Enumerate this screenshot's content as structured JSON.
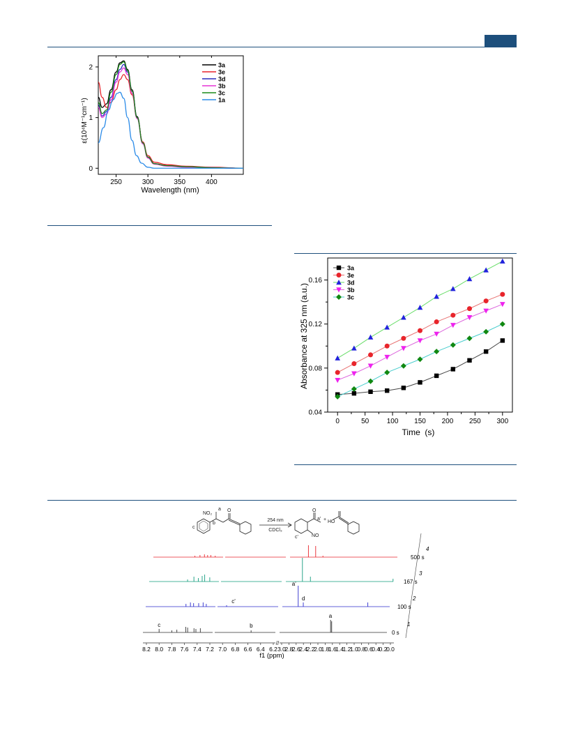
{
  "colors": {
    "rule": "#1d4f7c"
  },
  "figure_uv": {
    "chart_data": {
      "type": "line",
      "title": "",
      "xlabel": "Wavelength (nm)",
      "ylabel": "ε(10⁴M⁻¹cm⁻¹)",
      "xlim": [
        222,
        450
      ],
      "ylim": [
        -0.12,
        2.22
      ],
      "xticks": [
        "250",
        "300",
        "350",
        "400"
      ],
      "xtick_values": [
        250,
        300,
        350,
        400
      ],
      "yticks": [
        "0",
        "1",
        "2"
      ],
      "ytick_values": [
        0,
        1,
        2
      ],
      "legend_placement": "top-right",
      "series": [
        {
          "name": "3a",
          "color": "#000000",
          "x": [
            222,
            228,
            235,
            242,
            250,
            256,
            262,
            268,
            275,
            283,
            292,
            300,
            310,
            330,
            360,
            400,
            450
          ],
          "y": [
            1.4,
            1.2,
            1.27,
            1.55,
            1.9,
            2.08,
            2.12,
            1.95,
            1.55,
            1.02,
            0.5,
            0.22,
            0.09,
            0.05,
            0.03,
            0.01,
            0.0
          ]
        },
        {
          "name": "3e",
          "color": "#e8242b",
          "x": [
            222,
            228,
            235,
            242,
            250,
            256,
            262,
            268,
            275,
            283,
            292,
            300,
            310,
            330,
            360,
            400,
            450
          ],
          "y": [
            1.7,
            1.4,
            1.2,
            1.3,
            1.55,
            1.75,
            1.85,
            1.75,
            1.45,
            1.0,
            0.52,
            0.25,
            0.12,
            0.07,
            0.04,
            0.02,
            0.0
          ]
        },
        {
          "name": "3d",
          "color": "#2b2bbd",
          "x": [
            222,
            228,
            235,
            242,
            250,
            256,
            262,
            268,
            275,
            283,
            292,
            300,
            310,
            330,
            360,
            400,
            450
          ],
          "y": [
            1.25,
            1.03,
            1.12,
            1.4,
            1.75,
            1.95,
            2.05,
            1.9,
            1.52,
            1.0,
            0.5,
            0.22,
            0.09,
            0.05,
            0.03,
            0.01,
            0.0
          ]
        },
        {
          "name": "3b",
          "color": "#e632d6",
          "x": [
            222,
            228,
            235,
            242,
            250,
            256,
            262,
            268,
            275,
            283,
            292,
            300,
            310,
            330,
            360,
            400,
            450
          ],
          "y": [
            1.2,
            1.0,
            1.07,
            1.35,
            1.7,
            1.9,
            1.98,
            1.85,
            1.48,
            0.98,
            0.48,
            0.2,
            0.08,
            0.04,
            0.02,
            0.01,
            0.0
          ]
        },
        {
          "name": "3c",
          "color": "#1a8a1a",
          "x": [
            222,
            228,
            235,
            242,
            250,
            256,
            262,
            268,
            275,
            283,
            292,
            300,
            310,
            330,
            360,
            400,
            450
          ],
          "y": [
            1.3,
            1.08,
            1.15,
            1.5,
            1.85,
            2.05,
            2.1,
            1.93,
            1.52,
            1.0,
            0.5,
            0.22,
            0.09,
            0.05,
            0.03,
            0.01,
            0.0
          ]
        },
        {
          "name": "1a",
          "color": "#2b8be8",
          "x": [
            222,
            230,
            238,
            245,
            252,
            256,
            262,
            268,
            275,
            282,
            290,
            300,
            310,
            330,
            360,
            400,
            450
          ],
          "y": [
            0.5,
            0.8,
            1.15,
            1.35,
            1.48,
            1.5,
            1.38,
            1.0,
            0.55,
            0.25,
            0.1,
            0.02,
            0.0,
            0.0,
            0.0,
            0.0,
            0.0
          ]
        }
      ]
    }
  },
  "figure_kinetics": {
    "chart_data": {
      "type": "line",
      "title": "",
      "xlabel": "Time  (s)",
      "ylabel": "Absorbance at 325 nm (a.u.)",
      "xlim": [
        -18,
        318
      ],
      "ylim": [
        0.04,
        0.18
      ],
      "xticks": [
        "0",
        "50",
        "100",
        "150",
        "200",
        "250",
        "300"
      ],
      "xtick_values": [
        0,
        50,
        100,
        150,
        200,
        250,
        300
      ],
      "yticks": [
        "0.04",
        "0.08",
        "0.12",
        "0.16"
      ],
      "ytick_values": [
        0.04,
        0.08,
        0.12,
        0.16
      ],
      "legend_placement": "top-left",
      "x": [
        0,
        30,
        60,
        90,
        120,
        150,
        180,
        210,
        240,
        270,
        300
      ],
      "series": [
        {
          "name": "3a",
          "color": "#000000",
          "line_color": "#444444",
          "marker": "square",
          "values": [
            0.056,
            0.057,
            0.0585,
            0.0595,
            0.062,
            0.067,
            0.073,
            0.079,
            0.087,
            0.095,
            0.105
          ]
        },
        {
          "name": "3e",
          "color": "#e8242b",
          "line_color": "#e87070",
          "marker": "circle",
          "values": [
            0.076,
            0.084,
            0.092,
            0.1,
            0.107,
            0.114,
            0.122,
            0.128,
            0.134,
            0.141,
            0.147
          ]
        },
        {
          "name": "3d",
          "color": "#2222dd",
          "line_color": "#66dd66",
          "marker": "triangle-up",
          "values": [
            0.089,
            0.098,
            0.108,
            0.117,
            0.126,
            0.135,
            0.145,
            0.152,
            0.161,
            0.169,
            0.177
          ]
        },
        {
          "name": "3b",
          "color": "#ee22ee",
          "line_color": "#dd66dd",
          "marker": "triangle-down",
          "values": [
            0.069,
            0.075,
            0.082,
            0.09,
            0.098,
            0.105,
            0.111,
            0.119,
            0.126,
            0.132,
            0.138
          ]
        },
        {
          "name": "3c",
          "color": "#118811",
          "line_color": "#44cccc",
          "marker": "diamond",
          "values": [
            0.054,
            0.061,
            0.068,
            0.076,
            0.082,
            0.088,
            0.095,
            0.101,
            0.107,
            0.113,
            0.12
          ]
        }
      ]
    }
  },
  "figure_nmr": {
    "reaction": {
      "reactant_no2": "NO₂",
      "label_a": "a",
      "label_b": "b",
      "label_c": "c",
      "label_o": "O",
      "arrow_top": "254 nm",
      "arrow_bottom": "CDCl₃",
      "product_label_a": "a'",
      "product_label_c": "c'",
      "product_no": "NO",
      "product_o": "O",
      "product_ho": "HO",
      "plus": "+"
    },
    "chart_data": {
      "type": "line",
      "xlabel": "f1 (ppm)",
      "xticks": [
        "8.2",
        "8.0",
        "7.8",
        "7.6",
        "7.4",
        "7.2",
        "7.0",
        "6.8",
        "6.6",
        "6.4",
        "6.2",
        "3.0",
        "2.8",
        "2.6",
        "2.4",
        "2.2",
        "2.0",
        "1.8",
        "1.6",
        "1.4",
        "1.2",
        "1.0",
        "0.8",
        "0.6",
        "0.4",
        "0.2",
        "0.0"
      ],
      "series": [
        {
          "name": "1",
          "time": "0 s",
          "color": "#333333",
          "peak_labels": [
            "c",
            "b",
            "a"
          ]
        },
        {
          "name": "2",
          "time": "100 s",
          "color": "#2b2bcc",
          "peak_labels": [
            "c'",
            "a'",
            "d"
          ]
        },
        {
          "name": "3",
          "time": "167 s",
          "color": "#139c7e"
        },
        {
          "name": "4",
          "time": "500 s",
          "color": "#e8242b"
        }
      ]
    }
  }
}
